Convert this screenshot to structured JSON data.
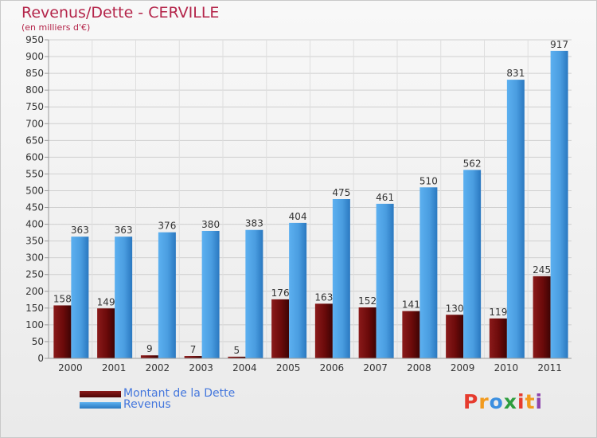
{
  "header": {
    "title": "Revenus/Dette - CERVILLE",
    "subtitle": "(en milliers d'€)"
  },
  "legend": {
    "dette": "Montant de la Dette",
    "revenus": "Revenus"
  },
  "logo": {
    "letters": [
      "P",
      "r",
      "o",
      "x",
      "i",
      "t",
      "i"
    ],
    "colors": [
      "#e63b2e",
      "#f29a1d",
      "#3b8fe0",
      "#2e9e3e",
      "#e63b2e",
      "#f29a1d",
      "#8e44ad"
    ]
  },
  "colors": {
    "dette": "#6b0a0a",
    "revenus": "#4a9de0",
    "title": "#b4254a"
  },
  "chart_data": {
    "type": "bar",
    "categories": [
      "2000",
      "2001",
      "2002",
      "2003",
      "2004",
      "2005",
      "2006",
      "2007",
      "2008",
      "2009",
      "2010",
      "2011"
    ],
    "series": [
      {
        "name": "Montant de la Dette",
        "values": [
          158,
          149,
          9,
          7,
          5,
          176,
          163,
          152,
          141,
          130,
          119,
          245
        ]
      },
      {
        "name": "Revenus",
        "values": [
          363,
          363,
          376,
          380,
          383,
          404,
          475,
          461,
          510,
          562,
          831,
          917
        ]
      }
    ],
    "yticks": [
      "0",
      "50",
      "100",
      "150",
      "200",
      "250",
      "300",
      "350",
      "400",
      "450",
      "500",
      "550",
      "600",
      "650",
      "700",
      "750",
      "800",
      "850",
      "900",
      "950"
    ],
    "ylim": [
      0,
      950
    ],
    "grid": true,
    "legend_position": "bottom-left"
  }
}
